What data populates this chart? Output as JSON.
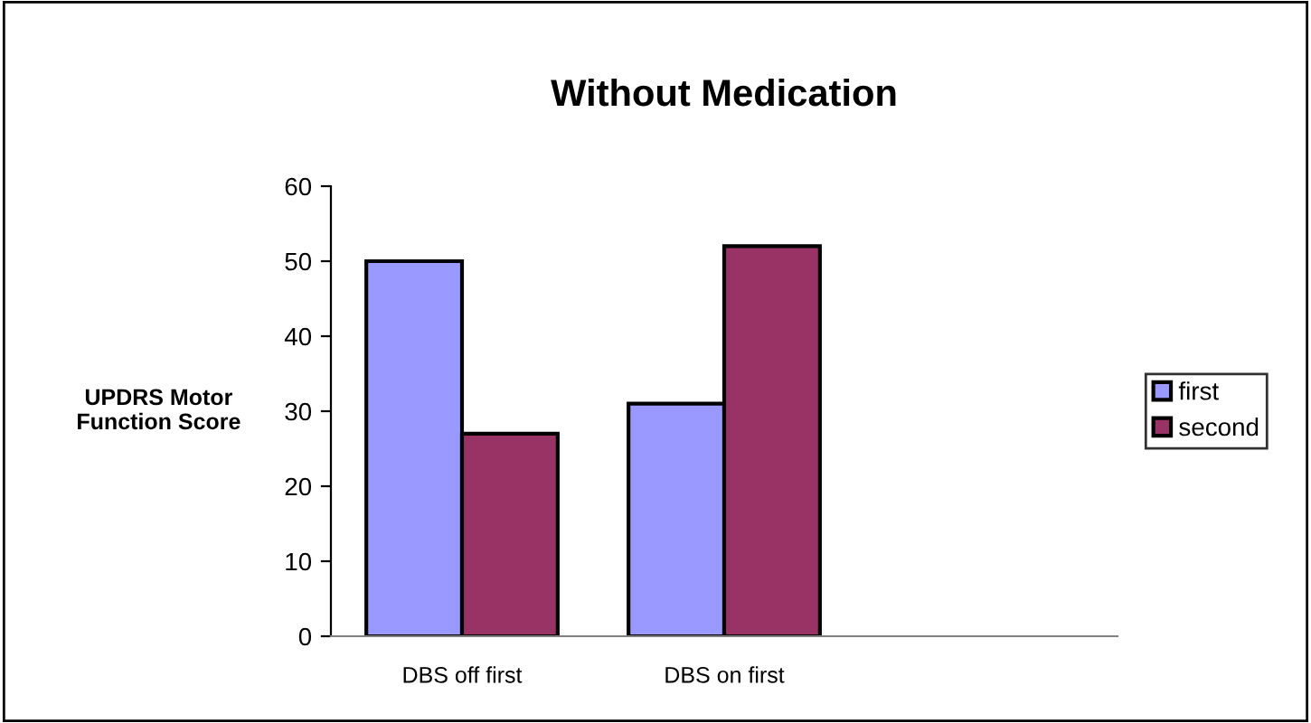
{
  "chart_data": {
    "type": "bar",
    "title": "Without Medication",
    "ylabel": "UPDRS Motor\nFunction Score",
    "categories": [
      "DBS off first",
      "DBS on first",
      null
    ],
    "series": [
      {
        "name": "first",
        "color": "#9999ff",
        "values": [
          50,
          31,
          null
        ]
      },
      {
        "name": "second",
        "color": "#993366",
        "values": [
          27,
          52,
          null
        ]
      }
    ],
    "ylim": [
      0,
      60
    ],
    "yticks": [
      0,
      10,
      20,
      30,
      40,
      50,
      60
    ],
    "grid": false,
    "legend": "right"
  }
}
